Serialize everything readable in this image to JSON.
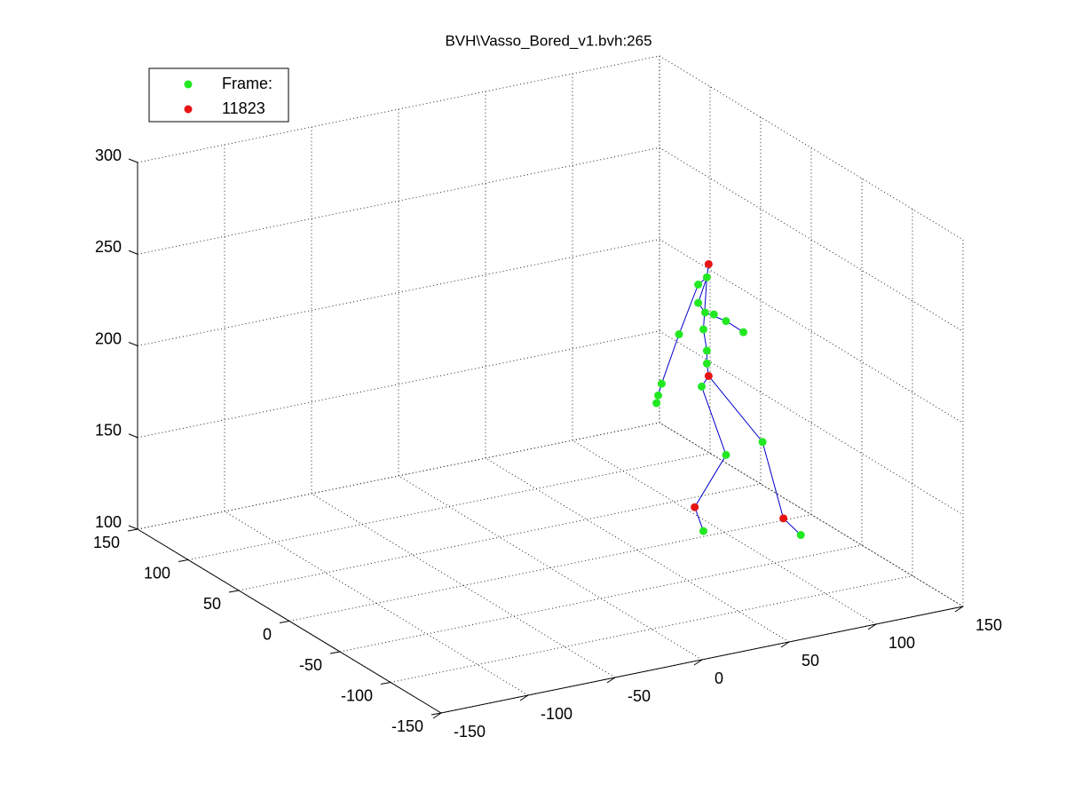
{
  "chart_data": {
    "type": "scatter3d",
    "title": "BVH\\Vasso_Bored_v1.bvh:265",
    "xlim": [
      -150,
      150
    ],
    "ylim": [
      -150,
      150
    ],
    "zlim": [
      100,
      300
    ],
    "xticks": [
      -150,
      -100,
      -50,
      0,
      50,
      100,
      150
    ],
    "yticks": [
      -150,
      -100,
      -50,
      0,
      50,
      100,
      150
    ],
    "zticks": [
      100,
      150,
      200,
      250,
      300
    ],
    "grid": true,
    "legend": "upper left",
    "series": [
      {
        "name": "Frame:",
        "color": "#22e822",
        "x": [
          90,
          85,
          74,
          64,
          62,
          61,
          85,
          89,
          94,
          101,
          111,
          88,
          90,
          90,
          87,
          101,
          88,
          122,
          144
        ],
        "y": [
          0,
          0,
          0,
          0,
          0,
          0,
          0,
          0,
          0,
          0,
          0,
          0,
          0,
          0,
          0,
          0,
          0,
          0,
          0
        ],
        "z": [
          241,
          238,
          213,
          188,
          182,
          178,
          228,
          222,
          220,
          215,
          207,
          213,
          201,
          194,
          182,
          142,
          103,
          145,
          90
        ]
      },
      {
        "name": "11823",
        "color": "#e81414",
        "x": [
          91,
          91,
          83,
          134
        ],
        "y": [
          0,
          0,
          0,
          0
        ],
        "z": [
          248,
          187,
          117,
          101
        ]
      }
    ],
    "lines": {
      "color": "#0000cc",
      "x": [
        91,
        90,
        85,
        74,
        64,
        62,
        null,
        90,
        85,
        89,
        101,
        111,
        null,
        90,
        88,
        90,
        90,
        91,
        87,
        101,
        83,
        88,
        null,
        91,
        122,
        134,
        144
      ],
      "y": [
        0,
        0,
        0,
        0,
        0,
        0,
        null,
        0,
        0,
        0,
        0,
        0,
        null,
        0,
        0,
        0,
        0,
        0,
        0,
        0,
        0,
        0,
        null,
        0,
        0,
        0,
        0
      ],
      "z": [
        248,
        241,
        238,
        213,
        188,
        182,
        null,
        241,
        228,
        222,
        215,
        207,
        null,
        241,
        213,
        201,
        194,
        187,
        182,
        142,
        117,
        103,
        null,
        187,
        145,
        101,
        90
      ]
    }
  }
}
